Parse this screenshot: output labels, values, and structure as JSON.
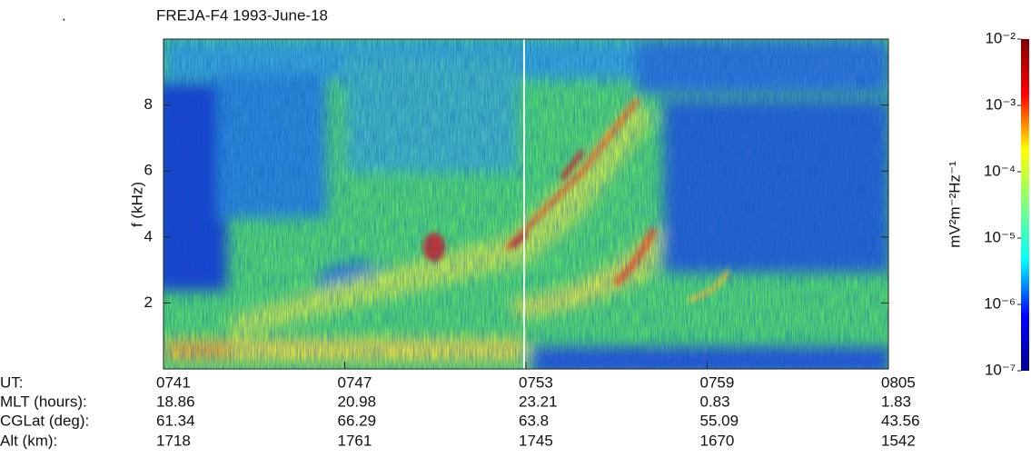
{
  "corner_mark": ".",
  "chart_data": {
    "type": "spectrogram",
    "title": "FREJA-F4   1993-June-18",
    "y_label": "f (kHz)",
    "ylim": [
      0,
      10
    ],
    "yticks": [
      2,
      4,
      6,
      8
    ],
    "ephemeris": [
      {
        "label": "UT:",
        "values": [
          "0741",
          "0747",
          "0753",
          "0759",
          "0805"
        ]
      },
      {
        "label": "MLT (hours):",
        "values": [
          18.86,
          20.98,
          23.21,
          0.83,
          1.83
        ]
      },
      {
        "label": "CGLat (deg):",
        "values": [
          61.34,
          66.29,
          63.8,
          55.09,
          43.56
        ]
      },
      {
        "label": "Alt (km):",
        "values": [
          1718,
          1761,
          1745,
          1670,
          1542
        ]
      }
    ],
    "colorbar": {
      "label": "mV²m⁻²Hz⁻¹",
      "log": true,
      "clim": [
        1e-07,
        0.01
      ],
      "ticks": [
        {
          "value": 0.01,
          "label": "10⁻²"
        },
        {
          "value": 0.001,
          "label": "10⁻³"
        },
        {
          "value": 0.0001,
          "label": "10⁻⁴"
        },
        {
          "value": 1e-05,
          "label": "10⁻⁵"
        },
        {
          "value": 1e-06,
          "label": "10⁻⁶"
        },
        {
          "value": 1e-07,
          "label": "10⁻⁷"
        }
      ],
      "colors": [
        "#00008f",
        "#0000ff",
        "#00ffff",
        "#7fff7f",
        "#ffff00",
        "#ff0000",
        "#800000"
      ]
    }
  }
}
